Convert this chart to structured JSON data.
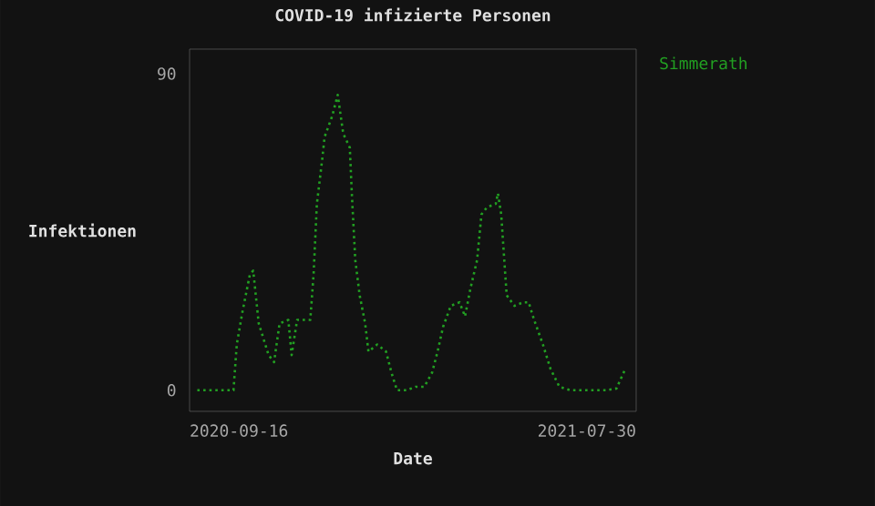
{
  "chart_data": {
    "type": "line",
    "title": "COVID-19 infizierte Personen",
    "xlabel": "Date",
    "ylabel": "Infektionen",
    "x": [
      "2020-08-09",
      "2020-09-11",
      "2020-09-14",
      "2020-09-19",
      "2020-09-26",
      "2020-09-29",
      "2020-10-04",
      "2020-10-13",
      "2020-10-18",
      "2020-10-23",
      "2020-10-31",
      "2020-11-03",
      "2020-11-08",
      "2020-11-20",
      "2020-11-23",
      "2020-11-26",
      "2020-12-01",
      "2020-12-03",
      "2020-12-10",
      "2020-12-15",
      "2020-12-20",
      "2020-12-26",
      "2020-12-28",
      "2020-12-31",
      "2021-01-04",
      "2021-01-09",
      "2021-01-12",
      "2021-01-20",
      "2021-01-28",
      "2021-02-02",
      "2021-02-07",
      "2021-02-16",
      "2021-02-24",
      "2021-03-04",
      "2021-03-11",
      "2021-03-16",
      "2021-03-21",
      "2021-03-28",
      "2021-04-05",
      "2021-04-10",
      "2021-04-15",
      "2021-04-21",
      "2021-04-25",
      "2021-04-30",
      "2021-05-08",
      "2021-05-10",
      "2021-05-13",
      "2021-05-16",
      "2021-05-18",
      "2021-05-25",
      "2021-06-02",
      "2021-06-07",
      "2021-06-12",
      "2021-06-20",
      "2021-06-27",
      "2021-07-05",
      "2021-07-15",
      "2021-08-01",
      "2021-08-17",
      "2021-08-26",
      "2021-09-03"
    ],
    "series": [
      {
        "name": "Simmerath",
        "color": "#22a022",
        "values": [
          0,
          0,
          13,
          22,
          33,
          34,
          19,
          10,
          8,
          19,
          20,
          10,
          20,
          20,
          33,
          53,
          66,
          72,
          78,
          84,
          73,
          69,
          55,
          37,
          27,
          19,
          11,
          13,
          11,
          5,
          0,
          0,
          1,
          1,
          5,
          11,
          18,
          24,
          25,
          21,
          29,
          37,
          50,
          52,
          53,
          56,
          50,
          36,
          27,
          24,
          25,
          25,
          20,
          13,
          6,
          1,
          0,
          0,
          0,
          0.5,
          6
        ]
      }
    ],
    "xlim": [
      "2020-08-02",
      "2021-09-13"
    ],
    "ylim": [
      -6,
      97
    ],
    "xticks": [
      {
        "value": "2020-09-16",
        "label": "2020-09-16"
      },
      {
        "value": "2021-07-30",
        "label": "2021-07-30"
      }
    ],
    "yticks": [
      0,
      90
    ],
    "legend": "top right",
    "line_style": "dotted"
  }
}
